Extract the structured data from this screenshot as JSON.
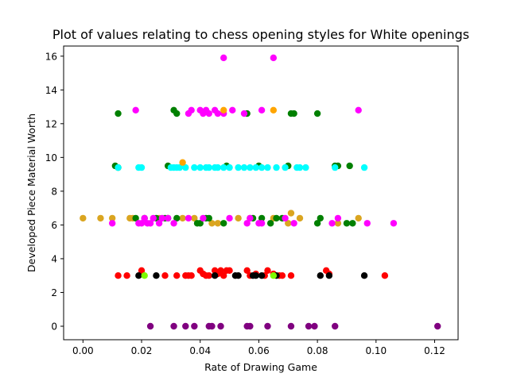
{
  "chart_data": {
    "type": "scatter",
    "title": "Plot of values relating to chess opening styles for White openings",
    "xlabel": "Rate of Drawing Game",
    "ylabel": "Developed Piece Material Worth",
    "xlim": [
      -0.0066,
      0.128
    ],
    "ylim": [
      -0.8,
      16.6
    ],
    "x_ticks": [
      0.0,
      0.02,
      0.04,
      0.06,
      0.08,
      0.1,
      0.12
    ],
    "x_tick_labels": [
      "0.00",
      "0.02",
      "0.04",
      "0.06",
      "0.08",
      "0.10",
      "0.12"
    ],
    "y_ticks": [
      0,
      2,
      4,
      6,
      8,
      10,
      12,
      14,
      16
    ],
    "y_tick_labels": [
      "0",
      "2",
      "4",
      "6",
      "8",
      "10",
      "12",
      "14",
      "16"
    ],
    "grid": false,
    "legend": "none",
    "series": [
      {
        "color": "#800080",
        "points": [
          [
            0.023,
            0
          ],
          [
            0.031,
            0
          ],
          [
            0.035,
            0
          ],
          [
            0.038,
            0
          ],
          [
            0.043,
            0
          ],
          [
            0.044,
            0
          ],
          [
            0.047,
            0
          ],
          [
            0.056,
            0
          ],
          [
            0.057,
            0
          ],
          [
            0.063,
            0
          ],
          [
            0.071,
            0
          ],
          [
            0.077,
            0
          ],
          [
            0.079,
            0
          ],
          [
            0.086,
            0
          ],
          [
            0.121,
            0
          ]
        ]
      },
      {
        "color": "#ff0000",
        "points": [
          [
            0.012,
            3
          ],
          [
            0.015,
            3
          ],
          [
            0.02,
            3.3
          ],
          [
            0.028,
            3
          ],
          [
            0.032,
            3
          ],
          [
            0.035,
            3
          ],
          [
            0.036,
            3
          ],
          [
            0.037,
            3
          ],
          [
            0.04,
            3.3
          ],
          [
            0.041,
            3.1
          ],
          [
            0.042,
            3
          ],
          [
            0.043,
            3
          ],
          [
            0.045,
            3.3
          ],
          [
            0.046,
            3.1
          ],
          [
            0.047,
            3.3
          ],
          [
            0.048,
            3
          ],
          [
            0.049,
            3.3
          ],
          [
            0.05,
            3.3
          ],
          [
            0.056,
            3.3
          ],
          [
            0.057,
            3
          ],
          [
            0.059,
            3.1
          ],
          [
            0.062,
            3
          ],
          [
            0.063,
            3.3
          ],
          [
            0.065,
            3.1
          ],
          [
            0.067,
            3
          ],
          [
            0.068,
            3
          ],
          [
            0.071,
            3
          ],
          [
            0.083,
            3.3
          ],
          [
            0.084,
            3.1
          ],
          [
            0.103,
            3
          ]
        ]
      },
      {
        "color": "#000000",
        "points": [
          [
            0.019,
            3
          ],
          [
            0.025,
            3
          ],
          [
            0.045,
            3
          ],
          [
            0.052,
            3
          ],
          [
            0.053,
            3
          ],
          [
            0.058,
            3
          ],
          [
            0.059,
            3
          ],
          [
            0.061,
            3
          ],
          [
            0.066,
            3
          ],
          [
            0.081,
            3
          ],
          [
            0.084,
            3
          ],
          [
            0.096,
            3
          ]
        ]
      },
      {
        "color": "#7cfc00",
        "points": [
          [
            0.021,
            3
          ],
          [
            0.065,
            3
          ]
        ]
      },
      {
        "color": "#daa520",
        "points": [
          [
            0.0,
            6.4
          ],
          [
            0.006,
            6.4
          ],
          [
            0.01,
            6.4
          ],
          [
            0.016,
            6.4
          ],
          [
            0.017,
            6.4
          ],
          [
            0.026,
            6.4
          ],
          [
            0.034,
            6.4
          ],
          [
            0.038,
            6.4
          ],
          [
            0.044,
            6.1
          ],
          [
            0.046,
            6.1
          ],
          [
            0.053,
            6.4
          ],
          [
            0.057,
            6.4
          ],
          [
            0.065,
            6.4
          ],
          [
            0.07,
            6.1
          ],
          [
            0.071,
            6.7
          ],
          [
            0.074,
            6.4
          ],
          [
            0.087,
            6.1
          ],
          [
            0.094,
            6.4
          ]
        ]
      },
      {
        "color": "#008000",
        "points": [
          [
            0.018,
            6.4
          ],
          [
            0.021,
            6.4
          ],
          [
            0.025,
            6.4
          ],
          [
            0.028,
            6.4
          ],
          [
            0.029,
            6.4
          ],
          [
            0.032,
            6.4
          ],
          [
            0.039,
            6.1
          ],
          [
            0.04,
            6.1
          ],
          [
            0.042,
            6.4
          ],
          [
            0.043,
            6.4
          ],
          [
            0.048,
            6.1
          ],
          [
            0.058,
            6.4
          ],
          [
            0.061,
            6.4
          ],
          [
            0.064,
            6.1
          ],
          [
            0.066,
            6.4
          ],
          [
            0.068,
            6.4
          ],
          [
            0.08,
            6.1
          ],
          [
            0.081,
            6.4
          ],
          [
            0.09,
            6.1
          ],
          [
            0.092,
            6.1
          ],
          [
            0.011,
            9.5
          ],
          [
            0.012,
            9.4
          ],
          [
            0.029,
            9.5
          ],
          [
            0.049,
            9.5
          ],
          [
            0.06,
            9.5
          ],
          [
            0.07,
            9.5
          ],
          [
            0.086,
            9.5
          ],
          [
            0.087,
            9.5
          ],
          [
            0.091,
            9.5
          ],
          [
            0.012,
            12.6
          ],
          [
            0.031,
            12.8
          ],
          [
            0.032,
            12.6
          ],
          [
            0.056,
            12.6
          ],
          [
            0.071,
            12.6
          ],
          [
            0.072,
            12.6
          ],
          [
            0.08,
            12.6
          ]
        ]
      },
      {
        "color": "#ff00ff",
        "points": [
          [
            0.01,
            6.1
          ],
          [
            0.019,
            6.1
          ],
          [
            0.02,
            6.1
          ],
          [
            0.021,
            6.4
          ],
          [
            0.022,
            6.1
          ],
          [
            0.023,
            6.1
          ],
          [
            0.024,
            6.4
          ],
          [
            0.026,
            6.1
          ],
          [
            0.027,
            6.4
          ],
          [
            0.029,
            6.4
          ],
          [
            0.031,
            6.1
          ],
          [
            0.036,
            6.4
          ],
          [
            0.041,
            6.4
          ],
          [
            0.05,
            6.4
          ],
          [
            0.056,
            6.1
          ],
          [
            0.057,
            6.4
          ],
          [
            0.06,
            6.1
          ],
          [
            0.061,
            6.1
          ],
          [
            0.069,
            6.4
          ],
          [
            0.072,
            6.1
          ],
          [
            0.085,
            6.1
          ],
          [
            0.087,
            6.4
          ],
          [
            0.097,
            6.1
          ],
          [
            0.106,
            6.1
          ],
          [
            0.018,
            12.8
          ],
          [
            0.036,
            12.6
          ],
          [
            0.037,
            12.8
          ],
          [
            0.04,
            12.8
          ],
          [
            0.041,
            12.6
          ],
          [
            0.042,
            12.8
          ],
          [
            0.043,
            12.6
          ],
          [
            0.045,
            12.8
          ],
          [
            0.046,
            12.6
          ],
          [
            0.048,
            12.6
          ],
          [
            0.051,
            12.8
          ],
          [
            0.055,
            12.6
          ],
          [
            0.061,
            12.8
          ],
          [
            0.094,
            12.8
          ],
          [
            0.048,
            15.9
          ],
          [
            0.065,
            15.9
          ]
        ]
      },
      {
        "color": "#00ffff",
        "points": [
          [
            0.012,
            9.4
          ],
          [
            0.019,
            9.4
          ],
          [
            0.02,
            9.4
          ],
          [
            0.03,
            9.4
          ],
          [
            0.031,
            9.4
          ],
          [
            0.032,
            9.4
          ],
          [
            0.033,
            9.4
          ],
          [
            0.035,
            9.4
          ],
          [
            0.038,
            9.4
          ],
          [
            0.04,
            9.4
          ],
          [
            0.042,
            9.4
          ],
          [
            0.043,
            9.4
          ],
          [
            0.045,
            9.4
          ],
          [
            0.046,
            9.4
          ],
          [
            0.048,
            9.4
          ],
          [
            0.05,
            9.4
          ],
          [
            0.053,
            9.4
          ],
          [
            0.055,
            9.4
          ],
          [
            0.057,
            9.4
          ],
          [
            0.059,
            9.4
          ],
          [
            0.061,
            9.4
          ],
          [
            0.063,
            9.4
          ],
          [
            0.066,
            9.4
          ],
          [
            0.069,
            9.4
          ],
          [
            0.073,
            9.4
          ],
          [
            0.074,
            9.4
          ],
          [
            0.076,
            9.4
          ],
          [
            0.086,
            9.4
          ],
          [
            0.096,
            9.4
          ]
        ]
      },
      {
        "color": "#ffa500",
        "points": [
          [
            0.034,
            9.7
          ],
          [
            0.048,
            12.8
          ],
          [
            0.065,
            12.8
          ]
        ]
      }
    ]
  }
}
